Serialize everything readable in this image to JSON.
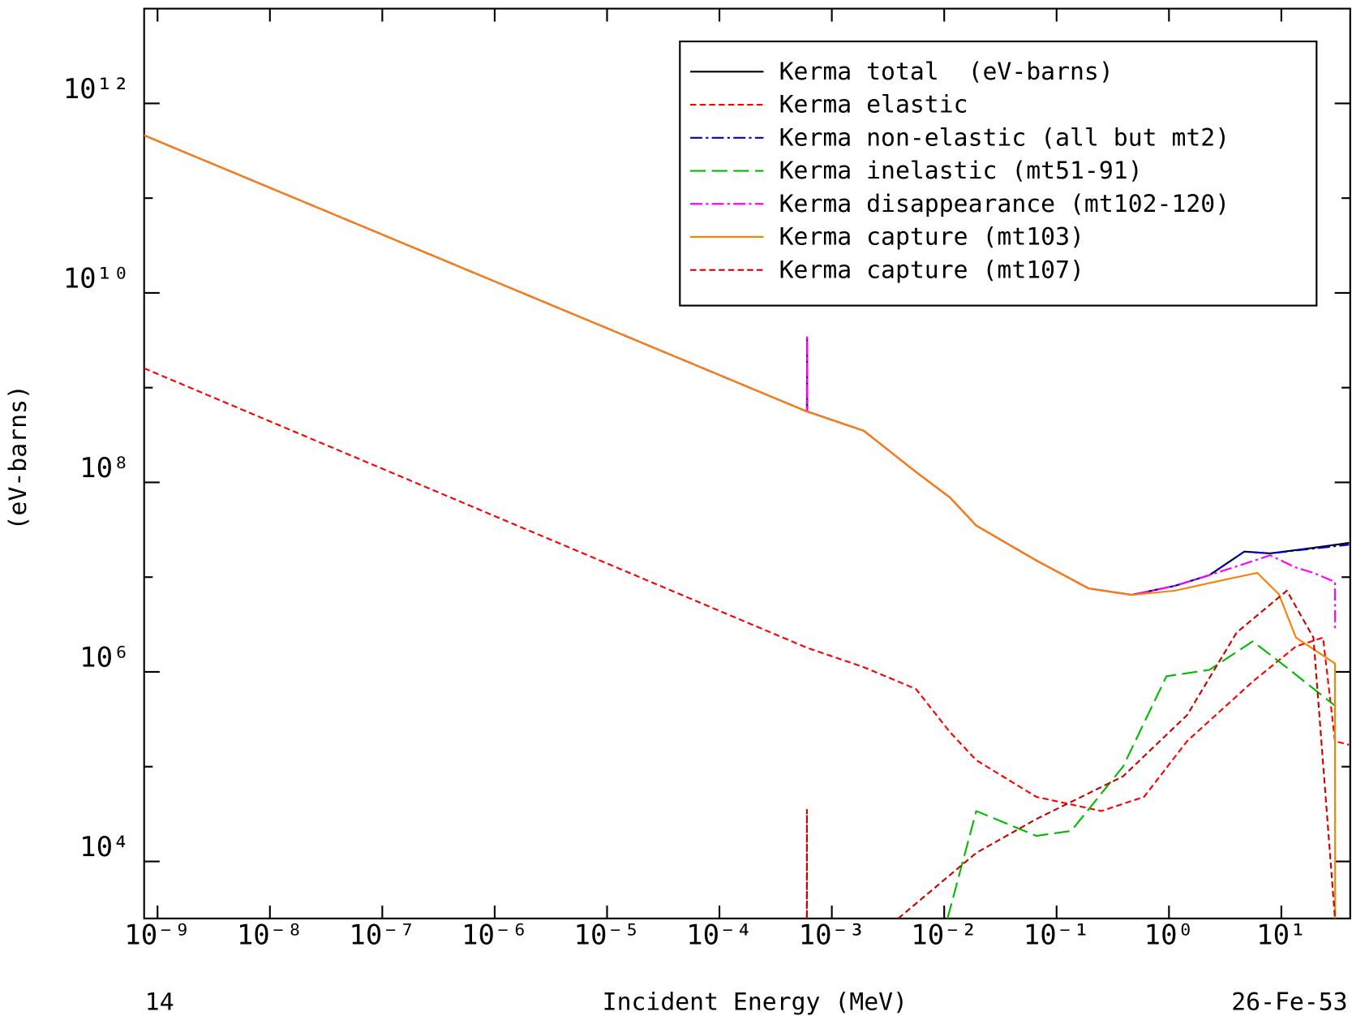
{
  "chart_data": {
    "type": "line",
    "x_label": "Incident Energy (MeV)",
    "y_label": "(eV-barns)",
    "footer_left": "14",
    "footer_right": "26-Fe-53",
    "x_log": true,
    "y_log": true,
    "legend": "top-right",
    "xlim": [
      7.6e-10,
      41
    ],
    "ylim": [
      2500,
      10000000000000.0
    ],
    "xticks": [
      {
        "value": 1e-09,
        "label": "10⁻⁹"
      },
      {
        "value": 1e-08,
        "label": "10⁻⁸"
      },
      {
        "value": 1e-07,
        "label": "10⁻⁷"
      },
      {
        "value": 1e-06,
        "label": "10⁻⁶"
      },
      {
        "value": 1e-05,
        "label": "10⁻⁵"
      },
      {
        "value": 0.0001,
        "label": "10⁻⁴"
      },
      {
        "value": 0.001,
        "label": "10⁻³"
      },
      {
        "value": 0.01,
        "label": "10⁻²"
      },
      {
        "value": 0.1,
        "label": "10⁻¹"
      },
      {
        "value": 1,
        "label": "10⁰"
      },
      {
        "value": 10,
        "label": "10¹"
      }
    ],
    "yticks": [
      {
        "value": 10000.0,
        "label": "10⁴"
      },
      {
        "value": 1000000.0,
        "label": "10⁶"
      },
      {
        "value": 100000000.0,
        "label": "10⁸"
      },
      {
        "value": 10000000000.0,
        "label": "10¹⁰"
      },
      {
        "value": 1000000000000.0,
        "label": "10¹²"
      }
    ],
    "yminor": [
      100000.0,
      10000000.0,
      1000000000.0,
      100000000000.0
    ],
    "series": [
      {
        "name": "Kerma total  (eV-barns)",
        "color": "#000000",
        "style": "solid",
        "x": [
          7.6e-10,
          0.0006,
          0.000603,
          0.000605,
          0.00193,
          0.0056,
          0.0113,
          0.0193,
          0.066,
          0.193,
          0.468,
          1.13,
          2.29,
          4.68,
          7.94,
          19.3,
          40
        ],
        "values": [
          460000000000.0,
          560000000.0,
          3400000000.0,
          560000000.0,
          350000000.0,
          129000000.0,
          69000000.0,
          35000000.0,
          15000000.0,
          7600000.0,
          6500000.0,
          8100000.0,
          10500000.0,
          18600000.0,
          17800000.0,
          20400000.0,
          23000000.0
        ]
      },
      {
        "name": "Kerma elastic",
        "color": "#ff0000",
        "style": "dashed",
        "x": [
          7.6e-10,
          0.0006,
          0.00193,
          0.0056,
          0.0113,
          0.0193,
          0.066,
          0.25,
          0.6,
          1.45,
          5.56,
          13.5,
          23.5,
          30,
          40
        ],
        "values": [
          1600000000.0,
          1800000.0,
          1120000.0,
          660000.0,
          230000.0,
          117000.0,
          48000.0,
          34000.0,
          48000.0,
          186000.0,
          790000.0,
          1860000.0,
          2300000.0,
          186000.0,
          170000.0
        ]
      },
      {
        "name": "Kerma non-elastic (all but mt2)",
        "color": "#0000cc",
        "style": "dash-dot",
        "x": [
          7.6e-10,
          0.0006,
          0.00193,
          0.0056,
          0.0113,
          0.0193,
          0.066,
          0.193,
          0.468,
          1.13,
          2.29,
          4.68,
          7.94,
          19.3,
          40
        ],
        "values": [
          460000000000.0,
          560000000.0,
          350000000.0,
          129000000.0,
          69000000.0,
          35000000.0,
          15000000.0,
          7600000.0,
          6500000.0,
          8100000.0,
          10500000.0,
          18600000.0,
          17800000.0,
          20000000.0,
          22000000.0
        ]
      },
      {
        "name": "Kerma inelastic (mt51-91)",
        "color": "#00bb00",
        "style": "long-dash",
        "x": [
          0.0107,
          0.0193,
          0.066,
          0.135,
          0.39,
          0.95,
          2.29,
          5.56,
          11.2,
          30
        ],
        "values": [
          2500,
          34000.0,
          18600.0,
          21000.0,
          100000.0,
          900000.0,
          1050000.0,
          2100000.0,
          1110000.0,
          440000.0
        ]
      },
      {
        "name": "Kerma disappearance (mt102-120)",
        "color": "#ff00ff",
        "style": "dash-dot",
        "x": [
          7.6e-10,
          0.0006,
          0.000603,
          0.000605,
          0.00193,
          0.0056,
          0.0113,
          0.0193,
          0.066,
          0.193,
          0.468,
          1.13,
          2.29,
          4.68,
          7.94,
          13.5,
          19.3,
          30,
          30.1
        ],
        "values": [
          460000000000.0,
          560000000.0,
          3400000000.0,
          560000000.0,
          350000000.0,
          129000000.0,
          69000000.0,
          35000000.0,
          15000000.0,
          7600000.0,
          6500000.0,
          8100000.0,
          10500000.0,
          13800000.0,
          17000000.0,
          12600000.0,
          11100000.0,
          8900000.0,
          2800000.0
        ]
      },
      {
        "name": "Kerma capture (mt103)",
        "color": "#ff8000",
        "style": "solid",
        "x": [
          7.6e-10,
          0.0006,
          0.00193,
          0.0056,
          0.0113,
          0.0193,
          0.066,
          0.193,
          0.468,
          1.13,
          3.27,
          6.1,
          9.5,
          13.5,
          30,
          30.1
        ],
        "values": [
          460000000000.0,
          560000000.0,
          350000000.0,
          129000000.0,
          69000000.0,
          35000000.0,
          15000000.0,
          7600000.0,
          6500000.0,
          7200000.0,
          9500000.0,
          11100000.0,
          6600000.0,
          2300000.0,
          1230000.0,
          2500
        ]
      },
      {
        "name": "Kerma capture (mt107)",
        "color": "#cc0000",
        "style": "dashed",
        "x": [
          0.000599,
          0.0006,
          0.000601,
          0.000602,
          0.0039,
          0.0193,
          0.066,
          0.39,
          1.45,
          4.0,
          11.2,
          19.3,
          30
        ],
        "values": [
          2500,
          35000.0,
          2500,
          null,
          2500,
          12300.0,
          28000.0,
          79000.0,
          350000.0,
          2600000.0,
          7200000.0,
          2300000.0,
          2500
        ]
      }
    ]
  }
}
